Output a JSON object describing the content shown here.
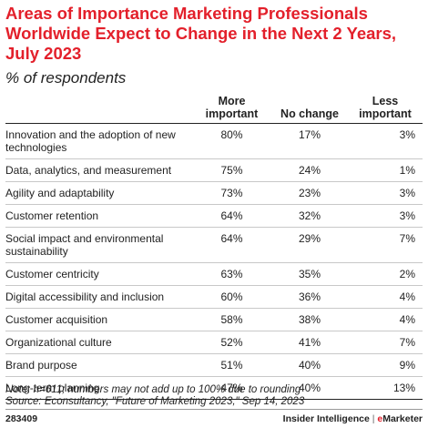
{
  "title": "Areas of Importance Marketing Professionals Worldwide Expect to Change in the Next 2 Years, July 2023",
  "subtitle": "% of respondents",
  "chart_data": {
    "type": "table",
    "columns": [
      "",
      "More important",
      "No change",
      "Less important"
    ],
    "rows": [
      {
        "label": "Innovation and the adoption of new technologies",
        "values": [
          "80%",
          "17%",
          "3%"
        ]
      },
      {
        "label": "Data, analytics, and measurement",
        "values": [
          "75%",
          "24%",
          "1%"
        ]
      },
      {
        "label": "Agility and adaptability",
        "values": [
          "73%",
          "23%",
          "3%"
        ]
      },
      {
        "label": "Customer retention",
        "values": [
          "64%",
          "32%",
          "3%"
        ]
      },
      {
        "label": "Social impact and environmental sustainability",
        "values": [
          "64%",
          "29%",
          "7%"
        ]
      },
      {
        "label": "Customer centricity",
        "values": [
          "63%",
          "35%",
          "2%"
        ]
      },
      {
        "label": "Digital accessibility and inclusion",
        "values": [
          "60%",
          "36%",
          "4%"
        ]
      },
      {
        "label": "Customer acquisition",
        "values": [
          "58%",
          "38%",
          "4%"
        ]
      },
      {
        "label": "Organizational culture",
        "values": [
          "52%",
          "41%",
          "7%"
        ]
      },
      {
        "label": "Brand purpose",
        "values": [
          "51%",
          "40%",
          "9%"
        ]
      },
      {
        "label": "Long-term planning",
        "values": [
          "47%",
          "40%",
          "13%"
        ]
      }
    ]
  },
  "note": "Note: n=611; numbers may not add up to 100% due to rounding",
  "source": "Source: Econsultancy, \"Future of Marketing 2023,\" Sep 14, 2023",
  "footer": {
    "id": "283409",
    "brand_left": "Insider Intelligence",
    "brand_sep": "|",
    "brand_right_e": "e",
    "brand_right_rest": "Marketer"
  },
  "colors": {
    "title": "#e3202b",
    "text": "#222222",
    "rule": "#c8c8c8"
  }
}
